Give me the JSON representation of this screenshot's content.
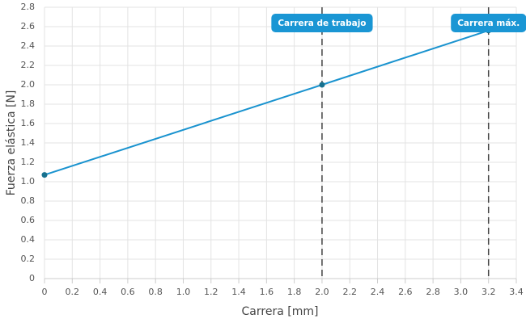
{
  "chart_data": {
    "type": "line",
    "x_label": "Carrera [mm]",
    "y_label": "Fuerza elástica [N]",
    "x": [
      0,
      2.0,
      3.2
    ],
    "values": [
      1.07,
      2.0,
      2.56
    ],
    "color": "#1a93cf",
    "marker_color": "#17718f",
    "xlim": [
      0,
      3.4
    ],
    "xticks": [
      0,
      0.2,
      0.4,
      0.6,
      0.8,
      {
        "value": 1,
        "label": "1.0"
      },
      1.2,
      1.4,
      1.6,
      1.8,
      {
        "value": 2,
        "label": "2.0"
      },
      2.2,
      2.4,
      2.6,
      2.8,
      {
        "value": 3,
        "label": "3.0"
      },
      3.2,
      3.4
    ],
    "ylim": [
      0,
      2.8
    ],
    "yticks": [
      0,
      0.2,
      0.4,
      0.6,
      0.8,
      {
        "value": 1,
        "label": "1.0"
      },
      1.2,
      1.4,
      1.6,
      1.8,
      {
        "value": 2,
        "label": "2.0"
      },
      2.2,
      2.4,
      2.6,
      2.8
    ],
    "grid": true,
    "annotations": [
      {
        "x": 2.0,
        "label": "Carrera de trabajo"
      },
      {
        "x": 3.2,
        "label": "Carrera máx."
      }
    ]
  }
}
